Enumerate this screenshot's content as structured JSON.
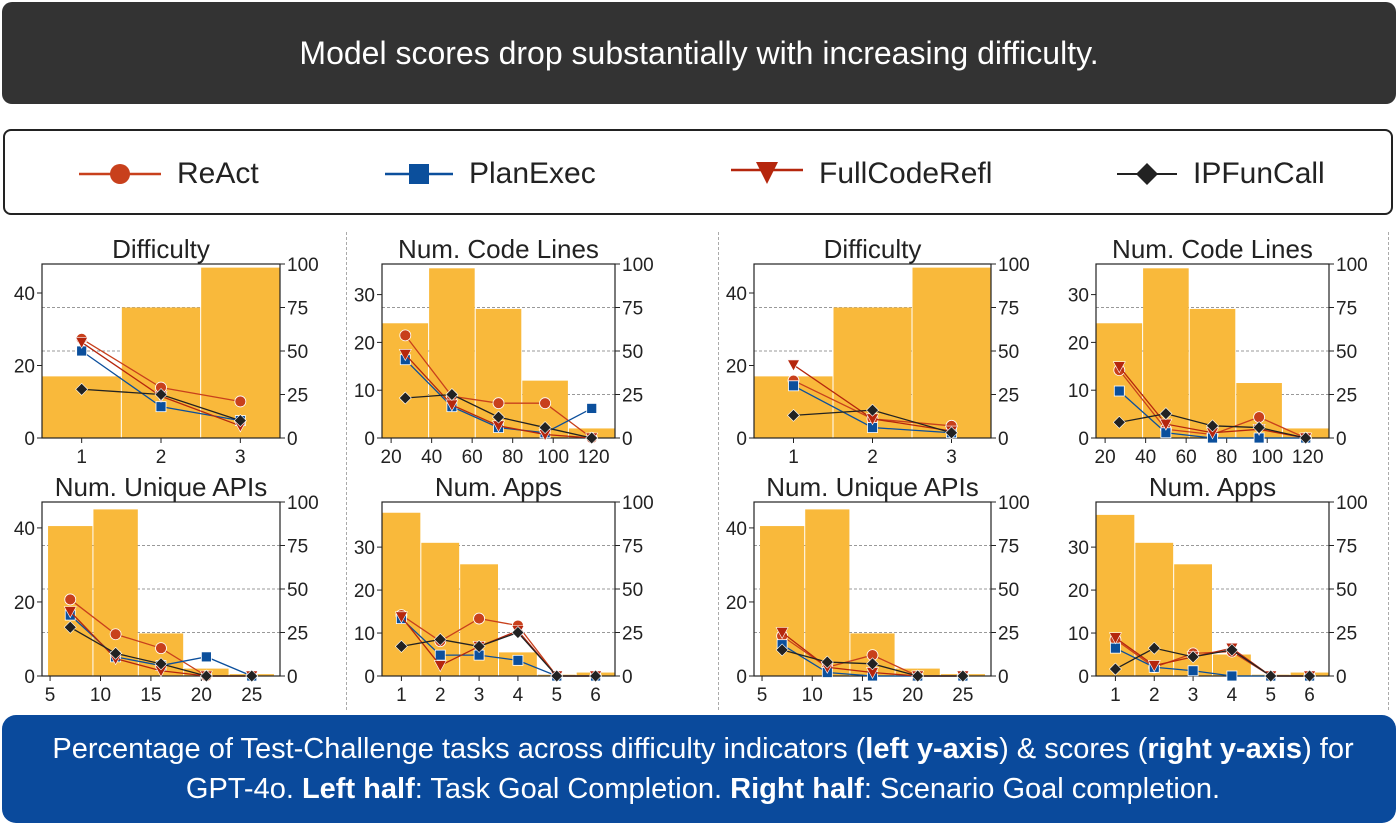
{
  "banner": {
    "text": "Model scores drop substantially with increasing difficulty."
  },
  "legend": [
    {
      "label": "ReAct",
      "color": "#c8401c",
      "marker": "circle"
    },
    {
      "label": "PlanExec",
      "color": "#0b4f9c",
      "marker": "square"
    },
    {
      "label": "FullCodeRefl",
      "color": "#b5260d",
      "marker": "triangle-down"
    },
    {
      "label": "IPFunCall",
      "color": "#222222",
      "marker": "diamond"
    }
  ],
  "caption": {
    "p1": "Percentage of Test-Challenge tasks across difficulty indicators (",
    "b1": "left y-axis",
    "p2": ") & scores (",
    "b2": "right y-axis",
    "p3": ") for GPT-4o.  ",
    "b3": "Left half",
    "p4": ": Task Goal Completion. ",
    "b4": "Right half",
    "p5": ": Scenario Goal completion."
  },
  "colors": {
    "bar": "#f9b93b",
    "ReAct": "#c8401c",
    "PlanExec": "#0b4f9c",
    "FullCodeRefl": "#b5260d",
    "IPFunCall": "#222222"
  },
  "chart_data": [
    {
      "type": "bar",
      "title": "Difficulty",
      "panel": "Task Goal Completion",
      "categories": [
        "1",
        "2",
        "3"
      ],
      "bar_values": [
        17,
        36,
        47
      ],
      "ylim_left": [
        0,
        48
      ],
      "yticks_left": [
        0,
        20,
        40
      ],
      "ylim_right": [
        0,
        100
      ],
      "yticks_right": [
        0,
        25,
        50,
        75,
        100
      ],
      "series": [
        {
          "name": "ReAct",
          "values": [
            57,
            29,
            21
          ]
        },
        {
          "name": "PlanExec",
          "values": [
            50,
            18,
            10
          ]
        },
        {
          "name": "FullCodeRefl",
          "values": [
            55,
            24,
            7
          ]
        },
        {
          "name": "IPFunCall",
          "values": [
            28,
            25,
            10
          ]
        }
      ]
    },
    {
      "type": "bar",
      "title": "Num. Code Lines",
      "panel": "Task Goal Completion",
      "categories": [
        "20",
        "40",
        "60",
        "80",
        "100",
        "120"
      ],
      "bar_values": [
        24,
        35.5,
        27,
        12,
        2
      ],
      "bar_centers": [
        27,
        50,
        73,
        96,
        119
      ],
      "bar_width": 23,
      "xlim": [
        15.5,
        130.5
      ],
      "xticks": [
        20,
        40,
        60,
        80,
        100,
        120
      ],
      "ylim_left": [
        0,
        36.4
      ],
      "yticks_left": [
        0,
        10,
        20,
        30
      ],
      "ylim_right": [
        0,
        100
      ],
      "yticks_right": [
        0,
        25,
        50,
        75,
        100
      ],
      "series": [
        {
          "name": "ReAct",
          "x": [
            27,
            50,
            73,
            96,
            119
          ],
          "values": [
            59,
            24,
            20,
            20,
            0
          ]
        },
        {
          "name": "PlanExec",
          "x": [
            27,
            50,
            73,
            96,
            119
          ],
          "values": [
            45,
            18,
            6,
            3,
            17
          ]
        },
        {
          "name": "FullCodeRefl",
          "x": [
            27,
            50,
            73,
            96,
            119
          ],
          "values": [
            48,
            19,
            7,
            2,
            0
          ]
        },
        {
          "name": "IPFunCall",
          "x": [
            27,
            50,
            73,
            96,
            119
          ],
          "values": [
            23,
            25,
            12,
            6,
            0
          ]
        }
      ]
    },
    {
      "type": "bar",
      "title": "Difficulty",
      "panel": "Scenario Goal Completion",
      "categories": [
        "1",
        "2",
        "3"
      ],
      "bar_values": [
        17,
        36,
        47
      ],
      "ylim_left": [
        0,
        48
      ],
      "yticks_left": [
        0,
        20,
        40
      ],
      "ylim_right": [
        0,
        100
      ],
      "yticks_right": [
        0,
        25,
        50,
        75,
        100
      ],
      "series": [
        {
          "name": "ReAct",
          "values": [
            33,
            11,
            7
          ]
        },
        {
          "name": "PlanExec",
          "values": [
            30,
            6,
            3
          ]
        },
        {
          "name": "FullCodeRefl",
          "values": [
            42,
            11,
            4
          ]
        },
        {
          "name": "IPFunCall",
          "values": [
            13,
            16,
            3
          ]
        }
      ]
    },
    {
      "type": "bar",
      "title": "Num. Code Lines",
      "panel": "Scenario Goal Completion",
      "categories": [
        "20",
        "40",
        "60",
        "80",
        "100",
        "120"
      ],
      "bar_values": [
        24,
        35.5,
        27,
        11.5,
        2
      ],
      "bar_centers": [
        27,
        50,
        73,
        96,
        119
      ],
      "bar_width": 23,
      "xlim": [
        15.5,
        130.5
      ],
      "xticks": [
        20,
        40,
        60,
        80,
        100,
        120
      ],
      "ylim_left": [
        0,
        36.4
      ],
      "yticks_left": [
        0,
        10,
        20,
        30
      ],
      "ylim_right": [
        0,
        100
      ],
      "yticks_right": [
        0,
        25,
        50,
        75,
        100
      ],
      "series": [
        {
          "name": "ReAct",
          "x": [
            27,
            50,
            73,
            96,
            119
          ],
          "values": [
            39,
            5,
            2,
            12,
            0
          ]
        },
        {
          "name": "PlanExec",
          "x": [
            27,
            50,
            73,
            96,
            119
          ],
          "values": [
            27,
            3,
            0,
            0,
            0
          ]
        },
        {
          "name": "FullCodeRefl",
          "x": [
            27,
            50,
            73,
            96,
            119
          ],
          "values": [
            41,
            8,
            3,
            5,
            0
          ]
        },
        {
          "name": "IPFunCall",
          "x": [
            27,
            50,
            73,
            96,
            119
          ],
          "values": [
            9,
            14,
            7,
            6,
            0
          ]
        }
      ]
    },
    {
      "type": "bar",
      "title": "Num. Unique APIs",
      "panel": "Task Goal Completion",
      "categories": [
        "5",
        "10",
        "15",
        "20",
        "25"
      ],
      "bar_values": [
        40.5,
        45,
        11.5,
        2,
        0.5
      ],
      "bar_centers": [
        7,
        11.5,
        16,
        20.5,
        25
      ],
      "bar_width": 4.5,
      "xlim": [
        4.2,
        27.8
      ],
      "xticks": [
        5,
        10,
        15,
        20,
        25
      ],
      "ylim_left": [
        0,
        47
      ],
      "yticks_left": [
        0,
        20,
        40
      ],
      "ylim_right": [
        0,
        100
      ],
      "yticks_right": [
        0,
        25,
        50,
        75,
        100
      ],
      "series": [
        {
          "name": "ReAct",
          "x": [
            7,
            11.5,
            16,
            20.5,
            25
          ],
          "values": [
            44,
            24,
            16,
            0,
            0
          ]
        },
        {
          "name": "PlanExec",
          "x": [
            7,
            11.5,
            16,
            20.5,
            25
          ],
          "values": [
            35,
            11,
            6,
            11,
            0
          ]
        },
        {
          "name": "FullCodeRefl",
          "x": [
            7,
            11.5,
            16,
            20.5,
            25
          ],
          "values": [
            37,
            10,
            3,
            0,
            0
          ]
        },
        {
          "name": "IPFunCall",
          "x": [
            7,
            11.5,
            16,
            20.5,
            25
          ],
          "values": [
            28,
            13,
            7,
            0,
            0
          ]
        }
      ]
    },
    {
      "type": "bar",
      "title": "Num. Apps",
      "panel": "Task Goal Completion",
      "categories": [
        "1",
        "2",
        "3",
        "4",
        "5",
        "6"
      ],
      "bar_values": [
        38,
        31,
        26,
        5.5,
        0.3,
        0.8
      ],
      "ylim_left": [
        0,
        40.5
      ],
      "yticks_left": [
        0,
        10,
        20,
        30
      ],
      "ylim_right": [
        0,
        100
      ],
      "yticks_right": [
        0,
        25,
        50,
        75,
        100
      ],
      "series": [
        {
          "name": "ReAct",
          "values": [
            35,
            20,
            33,
            29,
            0,
            0
          ]
        },
        {
          "name": "PlanExec",
          "values": [
            33,
            12,
            12,
            9,
            0,
            0
          ]
        },
        {
          "name": "FullCodeRefl",
          "values": [
            34,
            6,
            17,
            26,
            0,
            0
          ]
        },
        {
          "name": "IPFunCall",
          "values": [
            17,
            21,
            17,
            25,
            0,
            0
          ]
        }
      ]
    },
    {
      "type": "bar",
      "title": "Num. Unique APIs",
      "panel": "Scenario Goal Completion",
      "categories": [
        "5",
        "10",
        "15",
        "20",
        "25"
      ],
      "bar_values": [
        40.5,
        45,
        11.5,
        2,
        0.5
      ],
      "bar_centers": [
        7,
        11.5,
        16,
        20.5,
        25
      ],
      "bar_width": 4.5,
      "xlim": [
        4.2,
        27.8
      ],
      "xticks": [
        5,
        10,
        15,
        20,
        25
      ],
      "ylim_left": [
        0,
        47
      ],
      "yticks_left": [
        0,
        20,
        40
      ],
      "ylim_right": [
        0,
        100
      ],
      "yticks_right": [
        0,
        25,
        50,
        75,
        100
      ],
      "series": [
        {
          "name": "ReAct",
          "x": [
            7,
            11.5,
            16,
            20.5,
            25
          ],
          "values": [
            23,
            5,
            12,
            0,
            0
          ]
        },
        {
          "name": "PlanExec",
          "x": [
            7,
            11.5,
            16,
            20.5,
            25
          ],
          "values": [
            18,
            2,
            0,
            0,
            0
          ]
        },
        {
          "name": "FullCodeRefl",
          "x": [
            7,
            11.5,
            16,
            20.5,
            25
          ],
          "values": [
            25,
            5,
            2,
            0,
            0
          ]
        },
        {
          "name": "IPFunCall",
          "x": [
            7,
            11.5,
            16,
            20.5,
            25
          ],
          "values": [
            15,
            8,
            7,
            0,
            0
          ]
        }
      ]
    },
    {
      "type": "bar",
      "title": "Num. Apps",
      "panel": "Scenario Goal Completion",
      "categories": [
        "1",
        "2",
        "3",
        "4",
        "5",
        "6"
      ],
      "bar_values": [
        37.5,
        31,
        26,
        5,
        0.3,
        0.8
      ],
      "ylim_left": [
        0,
        40.5
      ],
      "yticks_left": [
        0,
        10,
        20,
        30
      ],
      "ylim_right": [
        0,
        100
      ],
      "yticks_right": [
        0,
        25,
        50,
        75,
        100
      ],
      "series": [
        {
          "name": "ReAct",
          "values": [
            21,
            5,
            13,
            14,
            0,
            0
          ]
        },
        {
          "name": "PlanExec",
          "values": [
            16,
            5,
            3,
            0,
            0,
            0
          ]
        },
        {
          "name": "FullCodeRefl",
          "values": [
            22,
            6,
            11,
            16,
            0,
            0
          ]
        },
        {
          "name": "IPFunCall",
          "values": [
            4,
            16,
            11,
            15,
            0,
            0
          ]
        }
      ]
    }
  ]
}
